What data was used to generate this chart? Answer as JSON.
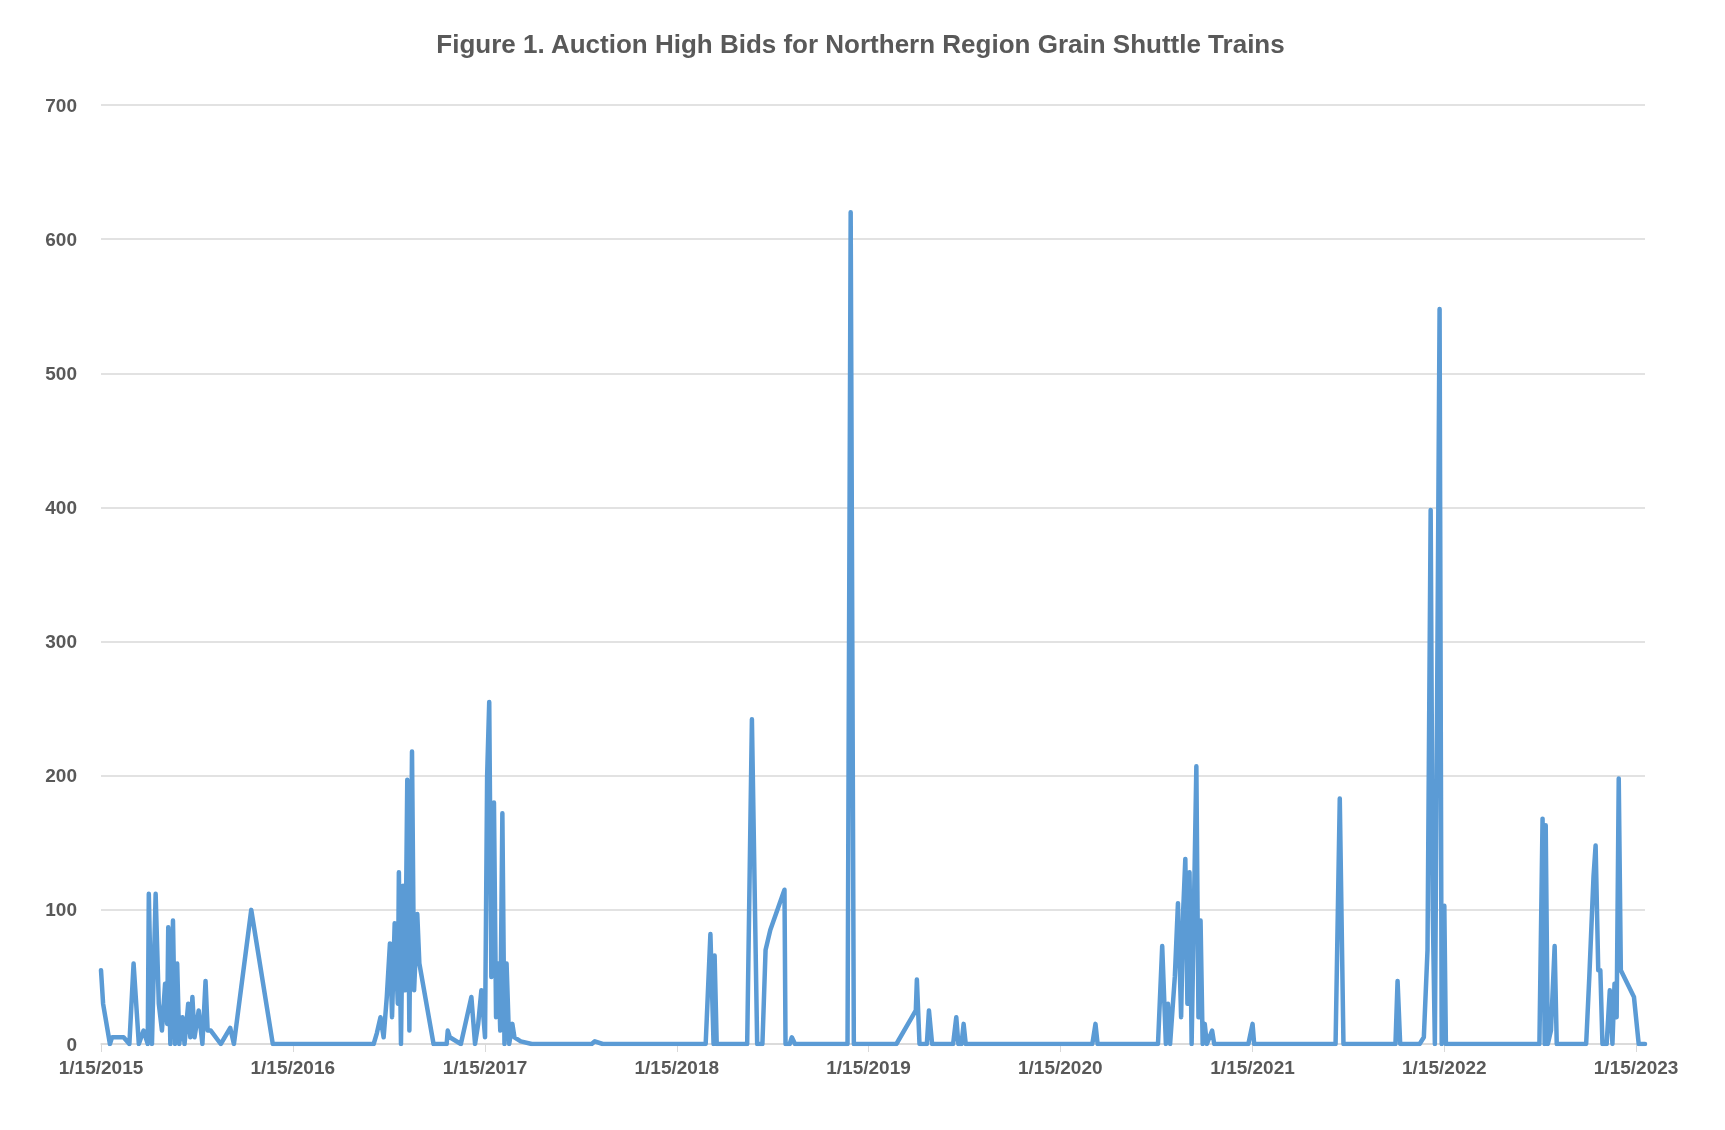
{
  "chart_data": {
    "type": "line",
    "title": "Figure 1. Auction High Bids for Northern Region Grain Shuttle Trains",
    "x": [
      "2015-01-15",
      "2015-01-19",
      "2015-02-01",
      "2015-02-05",
      "2015-02-21",
      "2015-02-27",
      "2015-03-10",
      "2015-03-18",
      "2015-03-28",
      "2015-04-06",
      "2015-04-14",
      "2015-04-16",
      "2015-04-22",
      "2015-04-29",
      "2015-05-05",
      "2015-05-11",
      "2015-05-17",
      "2015-05-21",
      "2015-05-23",
      "2015-05-27",
      "2015-06-01",
      "2015-06-05",
      "2015-06-09",
      "2015-06-13",
      "2015-06-19",
      "2015-06-23",
      "2015-06-30",
      "2015-07-04",
      "2015-07-08",
      "2015-07-12",
      "2015-07-20",
      "2015-07-27",
      "2015-08-02",
      "2015-08-06",
      "2015-08-12",
      "2015-08-31",
      "2015-09-18",
      "2015-09-25",
      "2015-10-28",
      "2015-12-08",
      "2016-06-17",
      "2016-06-23",
      "2016-06-30",
      "2016-07-06",
      "2016-07-12",
      "2016-07-18",
      "2016-07-22",
      "2016-07-27",
      "2016-08-02",
      "2016-08-04",
      "2016-08-08",
      "2016-08-12",
      "2016-08-16",
      "2016-08-20",
      "2016-08-24",
      "2016-08-29",
      "2016-09-02",
      "2016-09-08",
      "2016-09-12",
      "2016-10-09",
      "2016-11-03",
      "2016-11-05",
      "2016-11-09",
      "2016-11-30",
      "2016-12-20",
      "2016-12-27",
      "2017-01-02",
      "2017-01-08",
      "2017-01-15",
      "2017-01-19",
      "2017-01-23",
      "2017-01-27",
      "2017-02-01",
      "2017-02-05",
      "2017-02-09",
      "2017-02-13",
      "2017-02-17",
      "2017-02-21",
      "2017-02-25",
      "2017-03-02",
      "2017-03-08",
      "2017-03-12",
      "2017-03-24",
      "2017-04-14",
      "2017-08-06",
      "2017-08-12",
      "2017-08-27",
      "2018-03-11",
      "2018-03-20",
      "2018-03-26",
      "2018-03-28",
      "2018-04-01",
      "2018-05-29",
      "2018-06-07",
      "2018-06-17",
      "2018-06-27",
      "2018-07-03",
      "2018-07-12",
      "2018-08-08",
      "2018-08-10",
      "2018-08-18",
      "2018-08-22",
      "2018-08-28",
      "2018-12-06",
      "2018-12-12",
      "2018-12-18",
      "2019-03-09",
      "2019-04-15",
      "2019-04-17",
      "2019-04-22",
      "2019-05-06",
      "2019-05-10",
      "2019-05-16",
      "2019-06-25",
      "2019-07-01",
      "2019-07-05",
      "2019-07-11",
      "2019-07-15",
      "2019-07-19",
      "2020-03-16",
      "2020-03-22",
      "2020-03-26",
      "2020-07-19",
      "2020-07-27",
      "2020-08-03",
      "2020-08-07",
      "2020-08-11",
      "2020-08-20",
      "2020-08-26",
      "2020-09-01",
      "2020-09-05",
      "2020-09-09",
      "2020-09-13",
      "2020-09-17",
      "2020-09-21",
      "2020-09-30",
      "2020-10-04",
      "2020-10-08",
      "2020-10-12",
      "2020-10-16",
      "2020-10-20",
      "2020-10-30",
      "2020-11-03",
      "2021-01-07",
      "2021-01-15",
      "2021-01-18",
      "2021-06-22",
      "2021-06-30",
      "2021-07-07",
      "2021-10-14",
      "2021-10-18",
      "2021-10-23",
      "2021-11-29",
      "2021-12-07",
      "2021-12-14",
      "2021-12-20",
      "2021-12-24",
      "2021-12-28",
      "2022-01-02",
      "2022-01-06",
      "2022-01-10",
      "2022-01-15",
      "2022-01-18",
      "2022-07-15",
      "2022-07-21",
      "2022-07-25",
      "2022-07-27",
      "2022-07-31",
      "2022-08-06",
      "2022-08-13",
      "2022-08-17",
      "2022-08-27",
      "2022-10-12",
      "2022-10-18",
      "2022-10-26",
      "2022-10-30",
      "2022-11-04",
      "2022-11-08",
      "2022-11-12",
      "2022-11-20",
      "2022-11-26",
      "2022-12-01",
      "2022-12-05",
      "2022-12-09",
      "2022-12-13",
      "2022-12-17",
      "2023-01-11",
      "2023-01-20",
      "2023-02-01"
    ],
    "series": [
      {
        "color": "#5b9bd5",
        "values": [
          55,
          30,
          0,
          5,
          5,
          5,
          0,
          60,
          0,
          10,
          0,
          112,
          0,
          112,
          30,
          10,
          45,
          15,
          87,
          0,
          92,
          0,
          60,
          0,
          20,
          0,
          30,
          5,
          35,
          5,
          25,
          0,
          47,
          10,
          10,
          0,
          12,
          0,
          100,
          0,
          0,
          8,
          20,
          5,
          35,
          75,
          20,
          90,
          30,
          128,
          0,
          118,
          40,
          197,
          10,
          218,
          40,
          97,
          60,
          0,
          0,
          10,
          5,
          0,
          35,
          0,
          15,
          40,
          5,
          200,
          255,
          50,
          180,
          20,
          60,
          10,
          172,
          0,
          60,
          0,
          15,
          5,
          2,
          0,
          0,
          2,
          0,
          0,
          82,
          0,
          66,
          0,
          0,
          242,
          0,
          0,
          70,
          85,
          115,
          0,
          0,
          5,
          0,
          0,
          620,
          0,
          0,
          25,
          48,
          0,
          0,
          25,
          0,
          0,
          20,
          0,
          0,
          15,
          0,
          0,
          15,
          0,
          0,
          73,
          0,
          30,
          0,
          50,
          105,
          20,
          100,
          138,
          30,
          128,
          0,
          207,
          20,
          92,
          0,
          15,
          0,
          10,
          0,
          0,
          15,
          0,
          0,
          183,
          0,
          0,
          47,
          0,
          0,
          5,
          70,
          398,
          100,
          0,
          300,
          548,
          0,
          103,
          0,
          0,
          168,
          0,
          163,
          0,
          10,
          73,
          0,
          0,
          0,
          50,
          125,
          148,
          55,
          55,
          0,
          0,
          40,
          0,
          45,
          20,
          198,
          55,
          35,
          0,
          0
        ]
      }
    ],
    "xlim": [
      "2015-01-15",
      "2023-02-01"
    ],
    "xticks": [
      {
        "value": "2015-01-15",
        "label": "1/15/2015"
      },
      {
        "value": "2016-01-15",
        "label": "1/15/2016"
      },
      {
        "value": "2017-01-15",
        "label": "1/15/2017"
      },
      {
        "value": "2018-01-15",
        "label": "1/15/2018"
      },
      {
        "value": "2019-01-15",
        "label": "1/15/2019"
      },
      {
        "value": "2020-01-15",
        "label": "1/15/2020"
      },
      {
        "value": "2021-01-15",
        "label": "1/15/2021"
      },
      {
        "value": "2022-01-15",
        "label": "1/15/2022"
      },
      {
        "value": "2023-01-15",
        "label": "1/15/2023"
      }
    ],
    "ylim": [
      0,
      700
    ],
    "yticks": [
      0,
      100,
      200,
      300,
      400,
      500,
      600,
      700
    ],
    "grid": "y",
    "marker": "none",
    "line_style": "solid"
  }
}
